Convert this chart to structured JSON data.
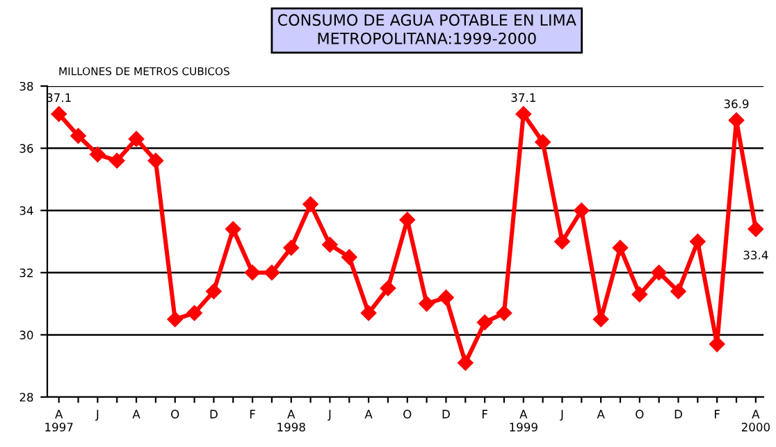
{
  "chart_data": {
    "type": "line",
    "title": "CONSUMO DE AGUA POTABLE EN LIMA\nMETROPOLITANA:1999-2000",
    "ylabel": "MILLONES DE METROS CUBICOS",
    "categories": [
      "A\n1997",
      null,
      "J",
      null,
      "A",
      null,
      "O",
      null,
      "D",
      null,
      "F",
      null,
      "A\n1998",
      null,
      "J",
      null,
      "A",
      null,
      "O",
      null,
      "D",
      null,
      "F",
      null,
      "A\n1999",
      null,
      "J",
      null,
      "A",
      null,
      "O",
      null,
      "D",
      null,
      "F",
      null,
      "A\n2000"
    ],
    "series": [
      {
        "color": "#ff0000",
        "values": [
          37.1,
          36.4,
          35.8,
          35.6,
          36.3,
          35.6,
          30.5,
          30.7,
          31.4,
          33.4,
          32.0,
          32.0,
          32.8,
          34.2,
          32.9,
          32.5,
          30.7,
          31.5,
          33.7,
          31.0,
          31.2,
          29.1,
          30.4,
          30.7,
          37.1,
          36.2,
          33.0,
          34.0,
          30.5,
          32.8,
          31.3,
          32.0,
          31.4,
          33.0,
          29.7,
          36.9,
          33.4
        ],
        "value_labels": [
          "37.1",
          null,
          null,
          null,
          null,
          null,
          null,
          null,
          null,
          null,
          null,
          null,
          null,
          null,
          null,
          null,
          null,
          null,
          null,
          null,
          null,
          null,
          null,
          null,
          "37.1",
          null,
          null,
          null,
          null,
          null,
          null,
          null,
          null,
          null,
          null,
          "36.9",
          "33.4"
        ]
      }
    ],
    "ylim": [
      28,
      38
    ],
    "yticks": [
      28,
      30,
      32,
      34,
      36,
      38
    ],
    "grid": "y",
    "marker": "diamond",
    "line_style": "solid"
  }
}
